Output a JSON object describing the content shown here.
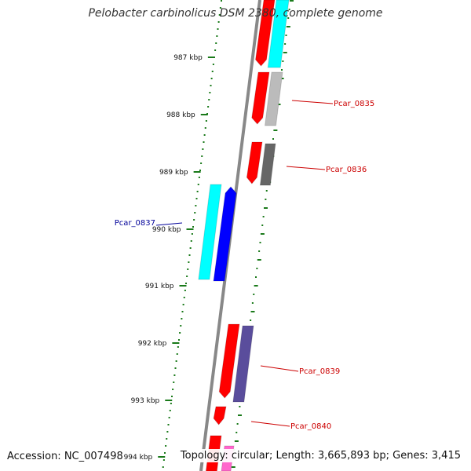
{
  "title": "Pelobacter carbinolicus DSM 2380, complete genome",
  "footer": {
    "accession": "Accession: NC_007498",
    "summary": "Topology: circular; Length: 3,665,893 bp; Genes: 3,415"
  },
  "ticks": [
    {
      "label": "987 kbp"
    },
    {
      "label": "988 kbp"
    },
    {
      "label": "989 kbp"
    },
    {
      "label": "990 kbp"
    },
    {
      "label": "991 kbp"
    },
    {
      "label": "992 kbp"
    },
    {
      "label": "993 kbp"
    },
    {
      "label": "994 kbp"
    }
  ],
  "gene_labels": [
    {
      "label": "Pcar_0835",
      "color": "#cc0000"
    },
    {
      "label": "Pcar_0836",
      "color": "#cc0000"
    },
    {
      "label": "Pcar_0837",
      "color": "#000099"
    },
    {
      "label": "Pcar_0839",
      "color": "#cc0000"
    },
    {
      "label": "Pcar_0840",
      "color": "#cc0000"
    }
  ],
  "colors": {
    "cds_forward": "#ff0000",
    "cds_reverse": "#0000ff",
    "rna_cyan": "#00ffff",
    "gray_light": "#bbbbbb",
    "gray_dark": "#666666",
    "purple": "#5a4d9c",
    "pink": "#ff66cc",
    "backbone": "#888888",
    "gc_dots": "#1a7a1a"
  }
}
